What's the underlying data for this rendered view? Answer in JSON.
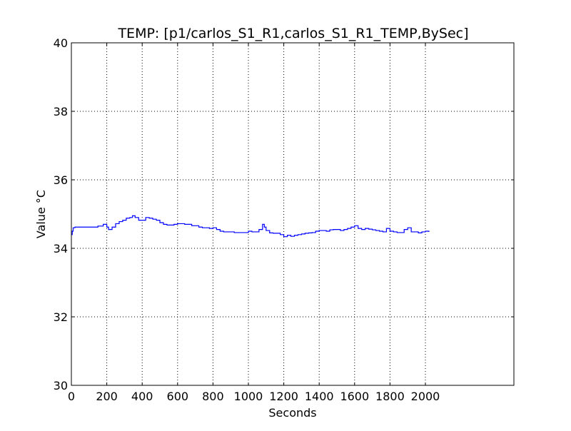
{
  "chart_data": {
    "type": "line",
    "title": "TEMP: [p1/carlos_S1_R1,carlos_S1_R1_TEMP,BySec]",
    "xlabel": "Seconds",
    "ylabel": "Value °C",
    "xlim": [
      0,
      2500
    ],
    "ylim": [
      30,
      40
    ],
    "xticks": [
      "0",
      "200",
      "400",
      "600",
      "800",
      "1000",
      "1200",
      "1400",
      "1600",
      "1800",
      "2000"
    ],
    "xtick_values": [
      0,
      200,
      400,
      600,
      800,
      1000,
      1200,
      1400,
      1600,
      1800,
      2000
    ],
    "yticks": [
      "30",
      "32",
      "34",
      "36",
      "38",
      "40"
    ],
    "ytick_values": [
      30,
      32,
      34,
      36,
      38,
      40
    ],
    "grid": "dotted",
    "legend": "none",
    "line_color": "#0000ff",
    "series": [
      {
        "x": [
          0,
          5,
          10,
          20,
          40,
          80,
          120,
          150,
          180,
          200,
          210,
          220,
          230,
          250,
          270,
          290,
          310,
          330,
          345,
          360,
          380,
          400,
          420,
          440,
          460,
          480,
          500,
          520,
          540,
          560,
          580,
          600,
          620,
          640,
          660,
          680,
          700,
          720,
          740,
          760,
          780,
          800,
          820,
          840,
          860,
          880,
          900,
          920,
          940,
          960,
          980,
          1000,
          1020,
          1040,
          1060,
          1080,
          1090,
          1100,
          1120,
          1140,
          1160,
          1180,
          1200,
          1220,
          1240,
          1260,
          1280,
          1300,
          1320,
          1340,
          1360,
          1380,
          1400,
          1420,
          1440,
          1460,
          1480,
          1500,
          1520,
          1540,
          1560,
          1580,
          1600,
          1620,
          1640,
          1660,
          1680,
          1700,
          1720,
          1740,
          1760,
          1780,
          1800,
          1820,
          1840,
          1860,
          1880,
          1900,
          1920,
          1940,
          1960,
          1980,
          2000,
          2020
        ],
        "y": [
          34.4,
          34.5,
          34.6,
          34.62,
          34.62,
          34.62,
          34.62,
          34.65,
          34.7,
          34.62,
          34.55,
          34.55,
          34.62,
          34.72,
          34.78,
          34.82,
          34.88,
          34.9,
          34.95,
          34.9,
          34.82,
          34.82,
          34.9,
          34.88,
          34.85,
          34.82,
          34.75,
          34.7,
          34.68,
          34.68,
          34.7,
          34.72,
          34.72,
          34.7,
          34.7,
          34.66,
          34.66,
          34.62,
          34.6,
          34.6,
          34.58,
          34.6,
          34.55,
          34.5,
          34.48,
          34.48,
          34.48,
          34.46,
          34.46,
          34.46,
          34.46,
          34.5,
          34.48,
          34.48,
          34.55,
          34.7,
          34.62,
          34.52,
          34.45,
          34.44,
          34.44,
          34.4,
          34.34,
          34.38,
          34.35,
          34.38,
          34.4,
          34.42,
          34.44,
          34.45,
          34.46,
          34.5,
          34.52,
          34.52,
          34.5,
          34.54,
          34.55,
          34.55,
          34.52,
          34.55,
          34.58,
          34.62,
          34.66,
          34.58,
          34.55,
          34.58,
          34.56,
          34.54,
          34.52,
          34.5,
          34.48,
          34.58,
          34.5,
          34.48,
          34.46,
          34.46,
          34.55,
          34.6,
          34.48,
          34.48,
          34.45,
          34.48,
          34.5,
          34.48
        ]
      }
    ]
  }
}
